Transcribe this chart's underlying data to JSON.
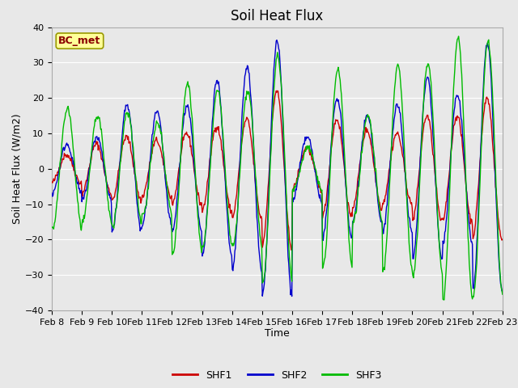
{
  "title": "Soil Heat Flux",
  "xlabel": "Time",
  "ylabel": "Soil Heat Flux (W/m2)",
  "ylim": [
    -40,
    40
  ],
  "yticks": [
    -40,
    -30,
    -20,
    -10,
    0,
    10,
    20,
    30,
    40
  ],
  "colors": {
    "SHF1": "#cc0000",
    "SHF2": "#0000cc",
    "SHF3": "#00bb00"
  },
  "legend_label": "BC_met",
  "background_color": "#e8e8e8",
  "plot_bg_color": "#e8e8e8",
  "xtick_labels": [
    "Feb 8",
    "Feb 9",
    "Feb 10",
    "Feb 11",
    "Feb 12",
    "Feb 13",
    "Feb 14",
    "Feb 15",
    "Feb 16",
    "Feb 17",
    "Feb 18",
    "Feb 19",
    "Feb 20",
    "Feb 21",
    "Feb 22",
    "Feb 23"
  ],
  "title_fontsize": 12,
  "axis_fontsize": 9,
  "tick_fontsize": 8,
  "n_days": 15,
  "n_per_day": 48,
  "amp1": [
    4,
    7,
    9,
    8,
    10,
    12,
    14,
    22,
    6,
    14,
    11,
    10,
    15,
    15,
    20
  ],
  "amp2": [
    7,
    9,
    18,
    16,
    18,
    25,
    29,
    36,
    9,
    20,
    15,
    18,
    26,
    21,
    35
  ],
  "amp3": [
    17,
    15,
    16,
    13,
    24,
    22,
    22,
    32,
    6,
    28,
    15,
    29,
    30,
    37,
    36
  ],
  "phase1": 0.08,
  "phase2": 0.0,
  "phase3": -0.12,
  "noise_seed": 42,
  "noise_scale": 0.5
}
